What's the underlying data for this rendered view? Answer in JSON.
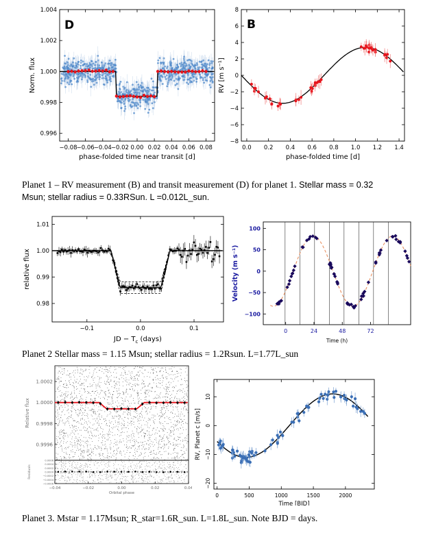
{
  "captions": {
    "p1_serif": "Planet 1 – RV measurement (B) and transit measurement (D) for planet 1.",
    "p1_sans_a": "Stellar mass = 0.32",
    "p1_sans_b": "Msun; stellar radius = 0.33RSun. L =0.012L_sun.",
    "p2": "Planet 2 Stellar mass = 1.15 Msun; stellar radius = 1.2Rsun. L=1.77L_sun",
    "p3": "Planet 3. Mstar = 1.17Msun; R_star=1.6R_sun. L=1.8L_sun. Note BJD = days."
  },
  "chart_data": [
    {
      "id": "p1_transit",
      "type": "scatter",
      "panel_label": "D",
      "xlabel": "phase-folded time near transit [d]",
      "ylabel": "Norm. flux",
      "xlim": [
        -0.09,
        0.09
      ],
      "ylim": [
        0.9955,
        1.004
      ],
      "xticks": [
        -0.08,
        -0.06,
        -0.04,
        -0.02,
        0.0,
        0.02,
        0.04,
        0.06,
        0.08
      ],
      "xtick_labels": [
        "−0.08",
        "−0.06",
        "−0.04",
        "−0.02",
        "0.00",
        "0.02",
        "0.04",
        "0.06",
        "0.08"
      ],
      "yticks": [
        0.996,
        0.998,
        1.0,
        1.002,
        1.004
      ],
      "ytick_labels": [
        "0.996",
        "0.998",
        "1.000",
        "1.002",
        "1.004"
      ],
      "model": {
        "depth": 0.0016,
        "t1": 0.018,
        "t2": 0.024
      },
      "colors": {
        "points": "#4a86c8",
        "bins": "#e8141c",
        "model": "#000000"
      }
    },
    {
      "id": "p1_rv",
      "type": "scatter",
      "panel_label": "B",
      "xlabel": "phase-folded time [d]",
      "ylabel": "RV [m s⁻¹]",
      "xlim": [
        -0.05,
        1.45
      ],
      "ylim": [
        -8,
        8
      ],
      "xticks": [
        0.0,
        0.2,
        0.4,
        0.6,
        0.8,
        1.0,
        1.2,
        1.4
      ],
      "xtick_labels": [
        "0.0",
        "0.2",
        "0.4",
        "0.6",
        "0.8",
        "1.0",
        "1.2",
        "1.4"
      ],
      "yticks": [
        -8,
        -6,
        -4,
        -2,
        0,
        2,
        4,
        6,
        8
      ],
      "ytick_labels": [
        "−8",
        "−6",
        "−4",
        "−2",
        "0",
        "2",
        "4",
        "6",
        "8"
      ],
      "model": {
        "K": 3.4,
        "period": 1.52,
        "phase_min": 0.33
      },
      "colors": {
        "points": "#e8141c",
        "model": "#000000"
      }
    },
    {
      "id": "p2_transit",
      "type": "scatter",
      "xlabel": "JD − T",
      "xlabel_sub": "c",
      "xlabel_tail": " (days)",
      "ylabel": "relative flux",
      "xlim": [
        -0.165,
        0.155
      ],
      "ylim": [
        0.973,
        1.013
      ],
      "xticks": [
        -0.1,
        0.0,
        0.1
      ],
      "xtick_labels": [
        "−0.1",
        "0.0",
        "0.1"
      ],
      "yticks": [
        0.98,
        0.99,
        1.0,
        1.01
      ],
      "ytick_labels": [
        "0.98",
        "0.99",
        "1.00",
        "1.01"
      ],
      "model": {
        "depth": 0.014,
        "t1": 0.055,
        "t2": 0.038
      },
      "colors": {
        "points": "#000000",
        "model": "#000000"
      }
    },
    {
      "id": "p2_rv",
      "type": "scatter",
      "xlabel": "Time (h)",
      "ylabel": "Velocity (m s⁻¹)",
      "xlim": [
        -19,
        106
      ],
      "ylim": [
        -125,
        115
      ],
      "xticks": [
        0,
        24,
        48,
        72
      ],
      "xtick_labels": [
        "0",
        "24",
        "48",
        "72"
      ],
      "yticks": [
        -100,
        -50,
        0,
        50,
        100
      ],
      "ytick_labels": [
        "−100",
        "−50",
        "0",
        "50",
        "100"
      ],
      "vlines": [
        -0.5,
        12,
        24.5,
        37,
        49.5,
        62,
        74.5,
        87
      ],
      "model": {
        "K": 82,
        "period": 67.5,
        "phase_min": 57
      },
      "colors": {
        "points": "#1a0a5c",
        "model": "#e89060",
        "axis_text": "#1a1aa0"
      }
    },
    {
      "id": "p3_transit",
      "type": "scatter",
      "xlabel": "Orbital phase",
      "ylabel": "Relative flux",
      "resid_ylabel": "Residuals",
      "xlim": [
        -0.04,
        0.04
      ],
      "ylim": [
        0.99945,
        1.00035
      ],
      "xticks": [
        -0.04,
        -0.02,
        0.0,
        0.02,
        0.04
      ],
      "xtick_labels": [
        "−0.04",
        "−0.02",
        "0.00",
        "0.02",
        "0.04"
      ],
      "yticks": [
        0.9996,
        0.9998,
        1.0,
        1.0002
      ],
      "ytick_labels": [
        "0.9996",
        "0.9998",
        "1.0000",
        "1.0002"
      ],
      "resid_ylim": [
        -0.0006,
        0.0006
      ],
      "resid_yticks": [
        -0.0006,
        -0.0004,
        -0.0002,
        0.0,
        0.0002,
        0.0004,
        0.0006
      ],
      "resid_ytick_labels": [
        "−0.0006",
        "−0.0004",
        "−0.0002",
        "0.0000",
        "0.0002",
        "0.0004",
        "0.0006"
      ],
      "model": {
        "depth": 6e-05,
        "t1": 0.0135,
        "t2": 0.009
      },
      "colors": {
        "points": "#000000",
        "model": "#e8141c"
      }
    },
    {
      "id": "p3_rv",
      "type": "scatter",
      "xlabel": "Time [BJD]",
      "ylabel": "RV, Planet c [m/s]",
      "xlim": [
        -50,
        2450
      ],
      "ylim": [
        -22,
        16
      ],
      "xticks": [
        0,
        500,
        1000,
        1500,
        2000
      ],
      "xtick_labels": [
        "0",
        "500",
        "1000",
        "1500",
        "2000"
      ],
      "yticks": [
        -20,
        -10,
        0,
        10
      ],
      "ytick_labels": [
        "−20",
        "−10",
        "0",
        "10"
      ],
      "model": {
        "K": 11,
        "period": 2700,
        "t_min": 450
      },
      "colors": {
        "points": "#3a6eb5",
        "model": "#000000"
      }
    }
  ]
}
